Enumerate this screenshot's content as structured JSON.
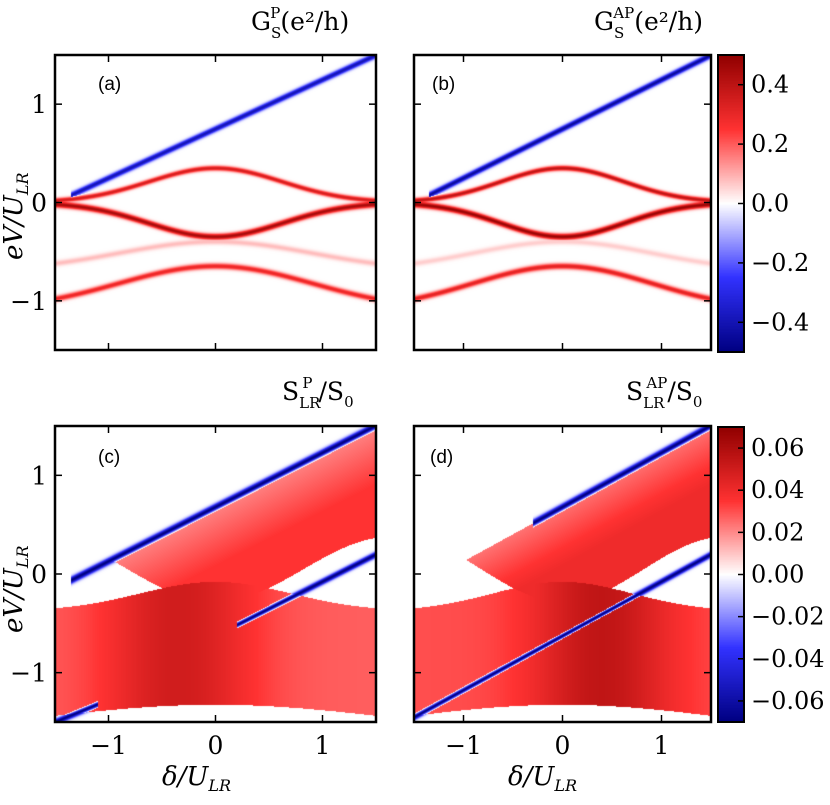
{
  "chart_data": [
    {
      "type": "heatmap",
      "panel": "a",
      "panel_label": "(a)",
      "title": {
        "base": "G",
        "sub": "S",
        "sup": "P",
        "units": "(e²/h)"
      },
      "xlabel": "δ/U_LR",
      "ylabel": "eV/U_LR",
      "xlim": [
        -1.5,
        1.5
      ],
      "ylim": [
        -1.5,
        1.5
      ],
      "xticks": [
        -1,
        0,
        1
      ],
      "yticks": [
        -1,
        0,
        1
      ],
      "show_xticklabels": false,
      "show_yticklabels": true,
      "features": [
        {
          "kind": "line",
          "slope": 0.5,
          "intercept": 0.75,
          "x_from": -1.35,
          "x_to": 1.5,
          "value": -0.4,
          "width": 0.03
        },
        {
          "kind": "arc",
          "center": 0.0,
          "amplitude": 0.35,
          "k": 1.9,
          "x_from": -1.5,
          "x_to": 1.5,
          "value": 0.35,
          "width": 0.025
        },
        {
          "kind": "arc",
          "center": 0.0,
          "amplitude": -0.35,
          "k": 1.9,
          "x_from": -1.5,
          "x_to": 1.5,
          "value": 0.45,
          "width": 0.03
        },
        {
          "kind": "arc",
          "center": -1.1,
          "amplitude": 0.45,
          "k": 1.3,
          "x_from": -1.5,
          "x_to": 1.5,
          "value": 0.3,
          "width": 0.03
        },
        {
          "kind": "arc",
          "center": -0.7,
          "amplitude": 0.3,
          "k": 1.3,
          "x_from": -1.5,
          "x_to": 1.5,
          "value": 0.08,
          "width": 0.03
        }
      ]
    },
    {
      "type": "heatmap",
      "panel": "b",
      "panel_label": "(b)",
      "title": {
        "base": "G",
        "sub": "S",
        "sup": "AP",
        "units": "(e²/h)"
      },
      "xlabel": "δ/U_LR",
      "ylabel": "eV/U_LR",
      "xlim": [
        -1.5,
        1.5
      ],
      "ylim": [
        -1.5,
        1.5
      ],
      "xticks": [
        -1,
        0,
        1
      ],
      "yticks": [
        -1,
        0,
        1
      ],
      "show_xticklabels": false,
      "show_yticklabels": false,
      "features": [
        {
          "kind": "line",
          "slope": 0.5,
          "intercept": 0.75,
          "x_from": -1.35,
          "x_to": 1.5,
          "value": -0.45,
          "width": 0.03
        },
        {
          "kind": "arc",
          "center": 0.0,
          "amplitude": 0.35,
          "k": 1.9,
          "x_from": -1.5,
          "x_to": 1.5,
          "value": 0.4,
          "width": 0.025
        },
        {
          "kind": "arc",
          "center": 0.0,
          "amplitude": -0.35,
          "k": 1.9,
          "x_from": -1.5,
          "x_to": 1.5,
          "value": 0.48,
          "width": 0.03
        },
        {
          "kind": "arc",
          "center": -1.1,
          "amplitude": 0.45,
          "k": 1.3,
          "x_from": -1.5,
          "x_to": 1.5,
          "value": 0.32,
          "width": 0.03
        },
        {
          "kind": "arc",
          "center": -0.7,
          "amplitude": 0.3,
          "k": 1.3,
          "x_from": -1.5,
          "x_to": 1.5,
          "value": 0.06,
          "width": 0.03
        }
      ],
      "colorbar": {
        "vmin": -0.5,
        "vmax": 0.5,
        "ticks": [
          "0.4",
          "0.2",
          "0.0",
          "−0.2",
          "−0.4"
        ],
        "tick_values": [
          0.4,
          0.2,
          0.0,
          -0.2,
          -0.4
        ]
      }
    },
    {
      "type": "heatmap",
      "panel": "c",
      "panel_label": "(c)",
      "title": {
        "base": "S",
        "sub": "LR",
        "sup": "P",
        "units": "/S",
        "units_sub": "0"
      },
      "xlabel": "δ/U_LR",
      "ylabel": "eV/U_LR",
      "xlim": [
        -1.5,
        1.5
      ],
      "ylim": [
        -1.5,
        1.5
      ],
      "xticks": [
        -1,
        0,
        1
      ],
      "yticks": [
        -1,
        0,
        1
      ],
      "xticklabels": [
        "−1",
        "0",
        "1"
      ],
      "yticklabels": [
        "1",
        "0",
        "−1"
      ],
      "show_xticklabels": true,
      "show_yticklabels": true,
      "regions": [
        {
          "kind": "upper_band",
          "value": 0.035
        },
        {
          "kind": "lower_band",
          "value": 0.05,
          "peak_x": -0.35
        }
      ],
      "features": [
        {
          "kind": "line",
          "slope": 0.55,
          "intercept": 0.68,
          "x_from": -1.35,
          "x_to": 1.5,
          "value": -0.07,
          "width": 0.035
        },
        {
          "kind": "line",
          "slope": 0.55,
          "intercept": -0.63,
          "x_from": 0.2,
          "x_to": 1.5,
          "value": -0.07,
          "width": 0.03
        },
        {
          "kind": "line",
          "slope": 0.45,
          "intercept": -0.83,
          "x_from": -1.5,
          "x_to": -1.1,
          "value": -0.07,
          "width": 0.03
        }
      ]
    },
    {
      "type": "heatmap",
      "panel": "d",
      "panel_label": "(d)",
      "title": {
        "base": "S",
        "sub": "LR",
        "sup": "AP",
        "units": "/S",
        "units_sub": "0"
      },
      "xlabel": "δ/U_LR",
      "ylabel": "eV/U_LR",
      "xlim": [
        -1.5,
        1.5
      ],
      "ylim": [
        -1.5,
        1.5
      ],
      "xticks": [
        -1,
        0,
        1
      ],
      "yticks": [
        -1,
        0,
        1
      ],
      "xticklabels": [
        "−1",
        "0",
        "1"
      ],
      "show_xticklabels": true,
      "show_yticklabels": false,
      "regions": [
        {
          "kind": "upper_band",
          "value": 0.04
        },
        {
          "kind": "lower_band",
          "value": 0.055,
          "peak_x": 0.4
        }
      ],
      "features": [
        {
          "kind": "line",
          "slope": 0.55,
          "intercept": 0.68,
          "x_from": -0.3,
          "x_to": 1.5,
          "value": -0.07,
          "width": 0.035
        },
        {
          "kind": "line",
          "slope": 0.55,
          "intercept": -0.63,
          "x_from": -1.5,
          "x_to": 1.5,
          "value": -0.07,
          "width": 0.03
        }
      ],
      "colorbar": {
        "vmin": -0.07,
        "vmax": 0.07,
        "ticks": [
          "0.06",
          "0.04",
          "0.02",
          "0.00",
          "−0.02",
          "−0.04",
          "−0.06"
        ],
        "tick_values": [
          0.06,
          0.04,
          0.02,
          0.0,
          -0.02,
          -0.04,
          -0.06
        ]
      }
    }
  ],
  "labels": {
    "ylabel_top": "eV/U",
    "ylabel_top_sub": "LR",
    "ylabel_bottom": "eV/U",
    "ylabel_bottom_sub": "LR",
    "xlabel_left": "δ/U",
    "xlabel_left_sub": "LR",
    "xlabel_right": "δ/U",
    "xlabel_right_sub": "LR"
  },
  "colors": {
    "positive": "#cc0000",
    "negative": "#0000cc",
    "zero": "#ffffff"
  }
}
